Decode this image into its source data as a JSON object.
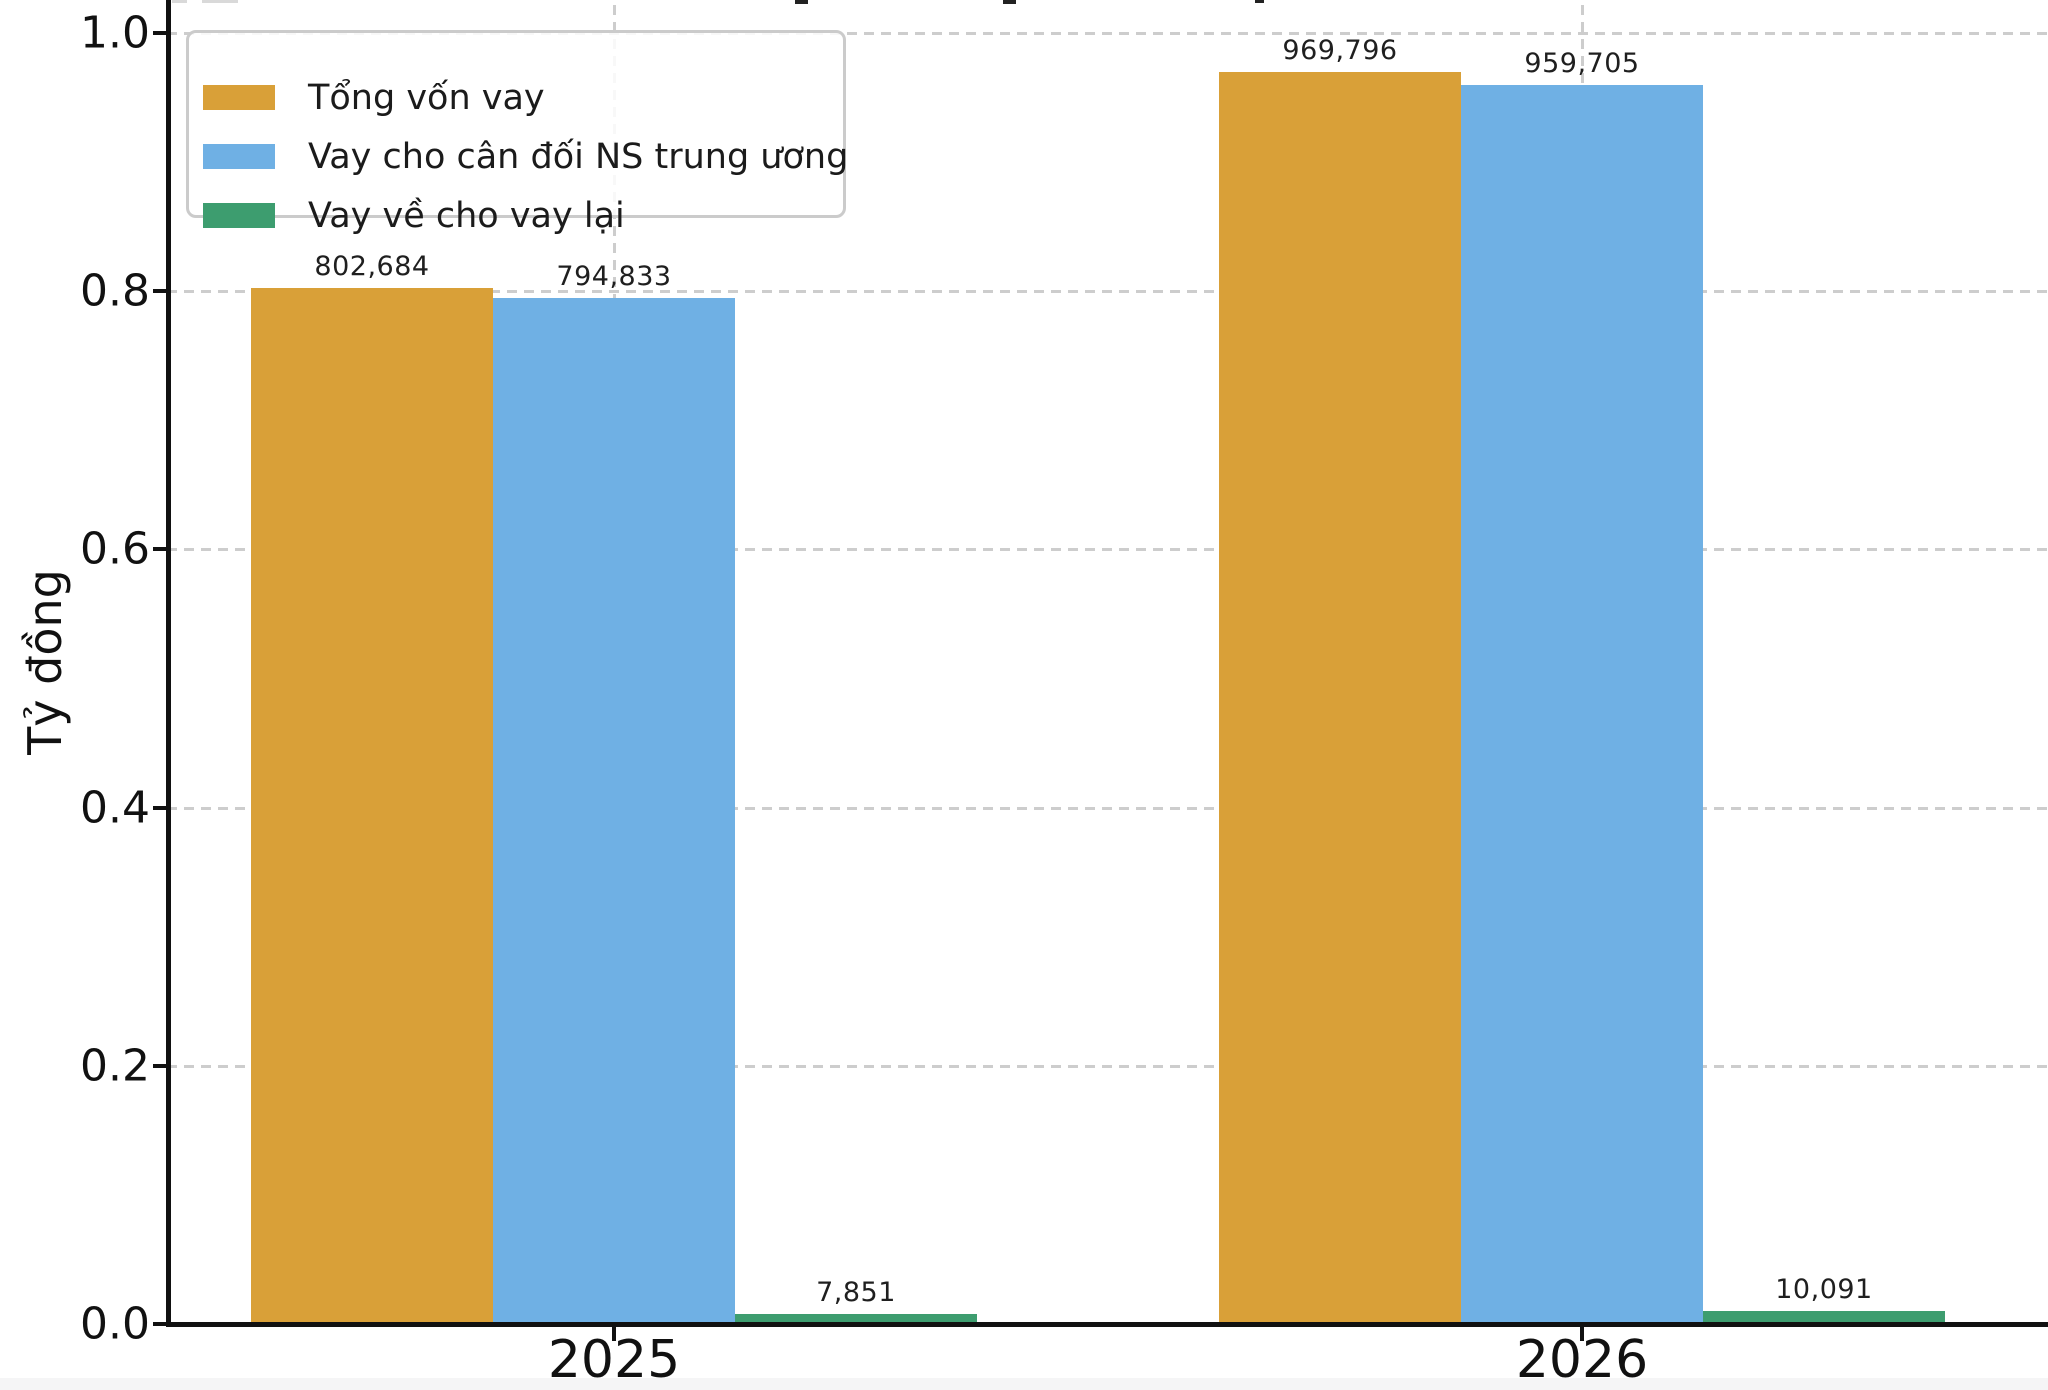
{
  "figure": {
    "background": "#ffffff",
    "bottom_strip_color": "#f5f5f6",
    "text_color": "#111111"
  },
  "chart_data": {
    "type": "bar",
    "title": "",
    "title_cropped_at_top": true,
    "categories": [
      "2025",
      "2026"
    ],
    "series": [
      {
        "name": "Tổng vốn vay",
        "color": "#D9A038",
        "values": [
          802684,
          969796
        ],
        "value_labels": [
          "802,684",
          "969,796"
        ]
      },
      {
        "name": "Vay cho cân đối NS trung ương",
        "color": "#6FB0E4",
        "values": [
          794833,
          959705
        ],
        "value_labels": [
          "794,833",
          "959,705"
        ]
      },
      {
        "name": "Vay về cho vay lại",
        "color": "#3D9D6F",
        "values": [
          7851,
          10091
        ],
        "value_labels": [
          "7,851",
          "10,091"
        ]
      }
    ],
    "xlabel": "",
    "ylabel": "Tỷ đồng",
    "unit_scale": 1000000,
    "y_ticks": [
      {
        "value": 0.0,
        "label": "0.0"
      },
      {
        "value": 0.2,
        "label": "0.2"
      },
      {
        "value": 0.4,
        "label": "0.4"
      },
      {
        "value": 0.6,
        "label": "0.6"
      },
      {
        "value": 0.8,
        "label": "0.8"
      },
      {
        "value": 1.0,
        "label": "1.0"
      }
    ],
    "ylim": [
      0,
      1.03
    ],
    "grid": {
      "which": "both",
      "style": "dashed",
      "color": "#cdcdcd"
    },
    "legend": {
      "position": "upper-left",
      "frame": true
    }
  },
  "crop_artifacts": {
    "dark_marks": [
      {
        "x": 795,
        "w": 13,
        "h": 4,
        "color": "#222222"
      },
      {
        "x": 1003,
        "w": 13,
        "h": 4,
        "color": "#222222"
      },
      {
        "x": 1255,
        "w": 9,
        "h": 3,
        "color": "#222222"
      }
    ],
    "light_marks": [
      {
        "x": 172,
        "w": 15,
        "h": 3,
        "color": "#d9d9d9"
      },
      {
        "x": 202,
        "w": 36,
        "h": 3,
        "color": "#d9d9d9"
      }
    ]
  }
}
